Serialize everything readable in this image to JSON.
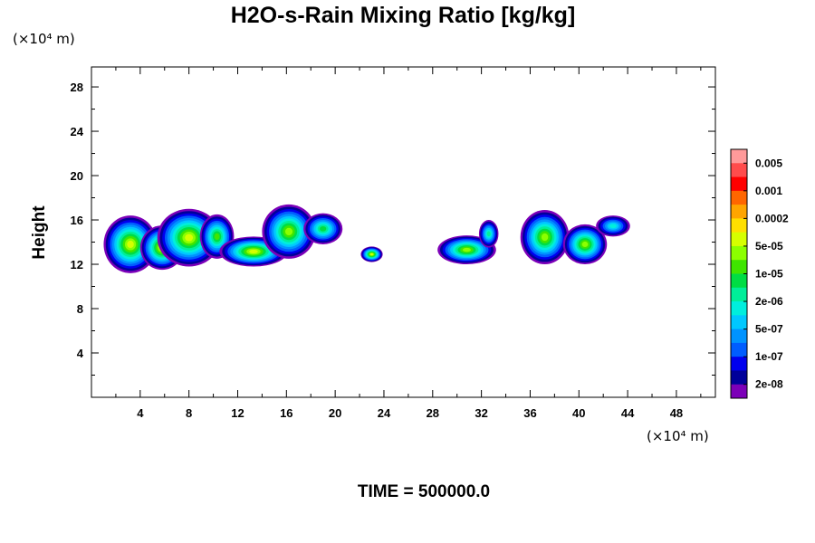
{
  "chart_data": {
    "type": "contour",
    "title": "H2O-s-Rain Mixing Ratio [kg/kg]",
    "ylabel": "Height",
    "x_unit_label": "(×10⁴ m)",
    "y_unit_label": "(×10⁴ m)",
    "xlim": [
      0,
      51.2
    ],
    "ylim": [
      0,
      29.8
    ],
    "x_ticks": [
      "4",
      "8",
      "12",
      "16",
      "20",
      "24",
      "28",
      "32",
      "36",
      "40",
      "44",
      "48"
    ],
    "y_ticks": [
      "4",
      "8",
      "12",
      "16",
      "20",
      "24",
      "28"
    ],
    "footer": "TIME = 500000.0",
    "colorbar": {
      "labels": [
        "0.005",
        "0.001",
        "0.0002",
        "5e-05",
        "1e-05",
        "2e-06",
        "5e-07",
        "1e-07",
        "2e-08"
      ],
      "colors_top_to_bottom": [
        "#ff9a9a",
        "#ff4c4c",
        "#ff0000",
        "#ff6600",
        "#ffa500",
        "#ffdf00",
        "#d6ff00",
        "#8cff00",
        "#3fe500",
        "#00dd44",
        "#00ee99",
        "#00eedd",
        "#00c8ff",
        "#0093ff",
        "#005dff",
        "#0000ee",
        "#00009a",
        "#7c00b8"
      ]
    },
    "cells": [
      {
        "x": 3.2,
        "base": 11.2,
        "top": 16.4,
        "w": 2.2,
        "peak": 11
      },
      {
        "x": 5.8,
        "base": 11.5,
        "top": 15.5,
        "w": 1.8,
        "peak": 11
      },
      {
        "x": 8.0,
        "base": 11.8,
        "top": 17.0,
        "w": 2.6,
        "peak": 11
      },
      {
        "x": 10.3,
        "base": 12.5,
        "top": 16.5,
        "w": 1.4,
        "peak": 9
      },
      {
        "x": 13.3,
        "base": 11.8,
        "top": 14.5,
        "w": 2.8,
        "peak": 11
      },
      {
        "x": 16.2,
        "base": 12.5,
        "top": 17.4,
        "w": 2.2,
        "peak": 10
      },
      {
        "x": 19.0,
        "base": 13.8,
        "top": 16.6,
        "w": 1.6,
        "peak": 8
      },
      {
        "x": 23.0,
        "base": 12.2,
        "top": 13.6,
        "w": 0.9,
        "peak": 11
      },
      {
        "x": 30.8,
        "base": 12.0,
        "top": 14.6,
        "w": 2.4,
        "peak": 10
      },
      {
        "x": 32.6,
        "base": 13.5,
        "top": 16.0,
        "w": 0.8,
        "peak": 7
      },
      {
        "x": 37.2,
        "base": 12.0,
        "top": 16.9,
        "w": 2.0,
        "peak": 10
      },
      {
        "x": 40.5,
        "base": 12.0,
        "top": 15.6,
        "w": 1.8,
        "peak": 10
      },
      {
        "x": 42.8,
        "base": 14.5,
        "top": 16.4,
        "w": 1.4,
        "peak": 6
      }
    ]
  }
}
